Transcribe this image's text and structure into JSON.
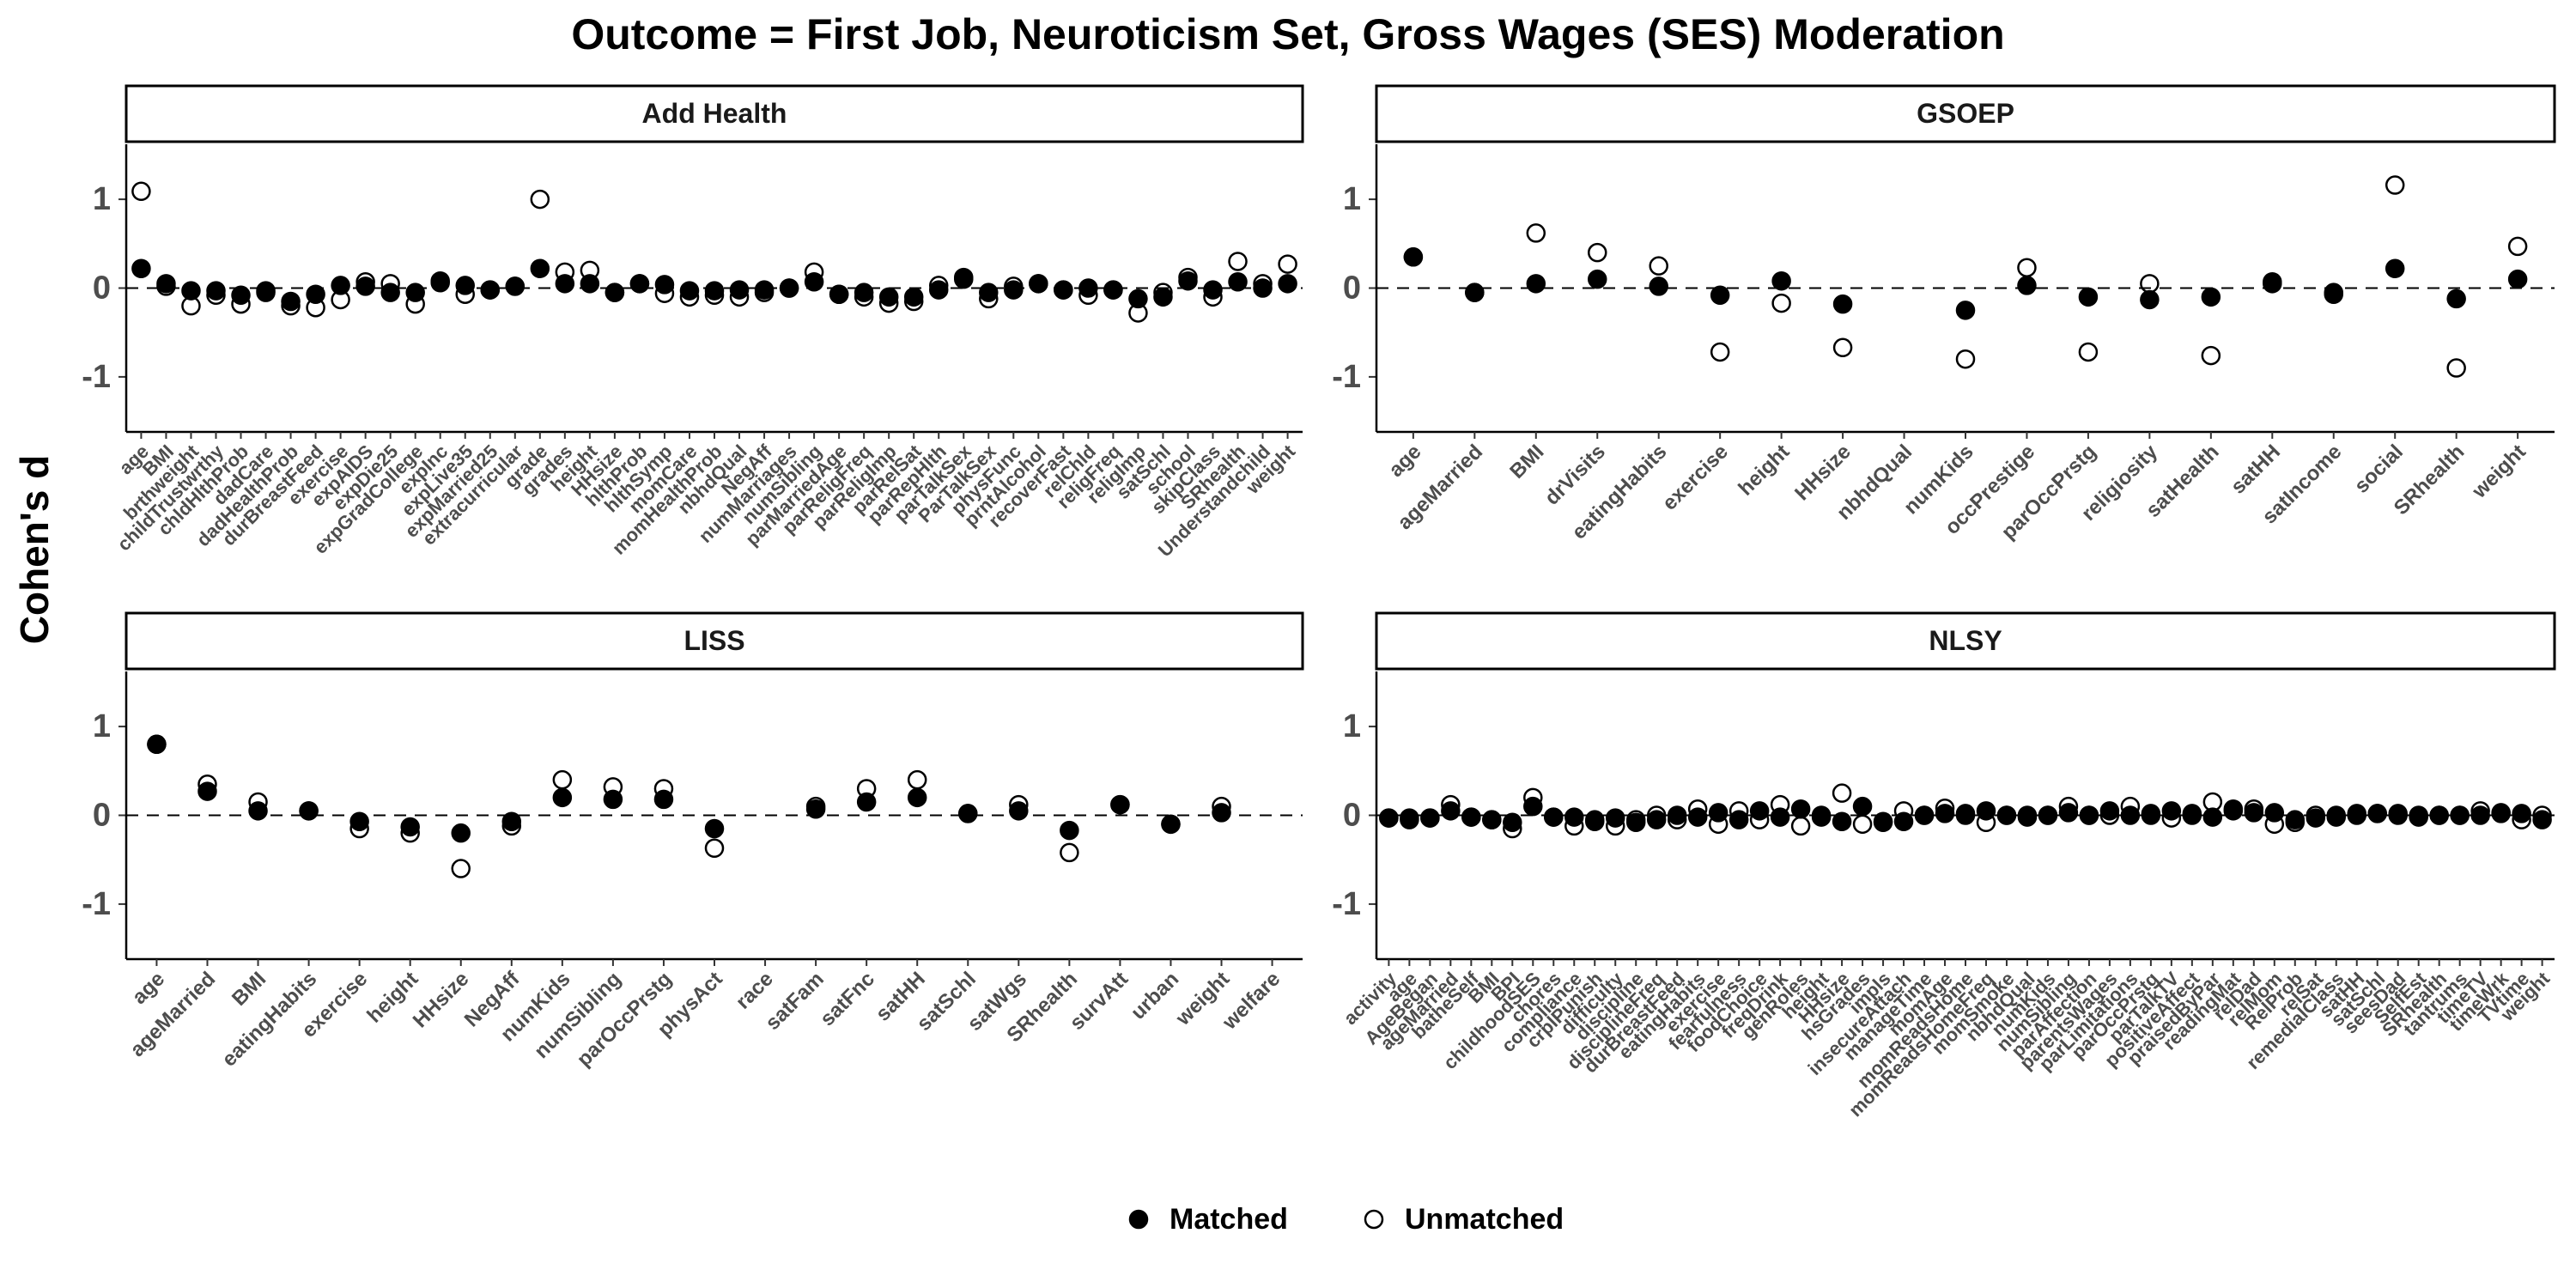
{
  "title": "Outcome = First Job, Neuroticism Set, Gross Wages (SES) Moderation",
  "y_label": "Cohen's d",
  "chart_data": [
    {
      "type": "point",
      "title": "Add Health",
      "categories": [
        "age",
        "BMI",
        "brthweight",
        "childTrustwrthy",
        "chldHlthProb",
        "dadCare",
        "dadHealthProb",
        "durBreastFeed",
        "exercise",
        "expAIDS",
        "expDie25",
        "expGradCollege",
        "expInc",
        "expLive35",
        "expMarried25",
        "extracurricular",
        "grade",
        "grades",
        "height",
        "HHsize",
        "hlthProb",
        "hlthSymp",
        "momCare",
        "momHealthProb",
        "nbhdQual",
        "NegAff",
        "numMarriages",
        "numSibling",
        "parMarriedAge",
        "parReligFreq",
        "parReligImp",
        "parRelSat",
        "parRepHlth",
        "parTalkSex",
        "ParTalkSex",
        "physFunc",
        "prntAlcohol",
        "recoverFast",
        "relChld",
        "religFreq",
        "religImp",
        "satSchl",
        "school",
        "skipClass",
        "SRhealth",
        "Understandchild",
        "weight"
      ],
      "series": [
        {
          "name": "Matched",
          "color": "#000000",
          "marker": "filled",
          "values": [
            0.22,
            0.05,
            -0.03,
            -0.03,
            -0.08,
            -0.05,
            -0.15,
            -0.07,
            0.03,
            0.02,
            -0.05,
            -0.05,
            0.08,
            0.03,
            -0.02,
            0.02,
            0.22,
            0.05,
            0.05,
            -0.05,
            0.05,
            0.04,
            -0.03,
            -0.03,
            -0.02,
            -0.02,
            0.0,
            0.07,
            -0.07,
            -0.05,
            -0.1,
            -0.1,
            -0.02,
            0.12,
            -0.05,
            -0.02,
            0.05,
            -0.02,
            0.0,
            -0.02,
            -0.12,
            -0.1,
            0.08,
            -0.02,
            0.07,
            0.0,
            0.05
          ]
        },
        {
          "name": "Unmatched",
          "color": "#000000",
          "marker": "open",
          "values": [
            1.09,
            0.02,
            -0.2,
            -0.08,
            -0.18,
            -0.03,
            -0.2,
            -0.22,
            -0.13,
            0.07,
            0.05,
            -0.18,
            0.06,
            -0.07,
            -0.02,
            0.02,
            1.0,
            0.18,
            0.2,
            -0.05,
            0.05,
            -0.06,
            -0.1,
            -0.08,
            -0.1,
            -0.05,
            0.0,
            0.18,
            -0.07,
            -0.1,
            -0.17,
            -0.15,
            0.03,
            0.1,
            -0.12,
            0.02,
            0.05,
            -0.02,
            -0.08,
            -0.02,
            -0.28,
            -0.05,
            0.12,
            -0.1,
            0.3,
            0.05,
            0.27
          ]
        }
      ],
      "ylim": [
        -1.62,
        1.62
      ],
      "yticks": [
        -1,
        0,
        1
      ],
      "zero_line": true
    },
    {
      "type": "point",
      "title": "GSOEP",
      "categories": [
        "age",
        "ageMarried",
        "BMI",
        "drVisits",
        "eatingHabits",
        "exercise",
        "height",
        "HHsize",
        "nbhdQual",
        "numKids",
        "occPrestige",
        "parOccPrstg",
        "religiosity",
        "satHealth",
        "satHH",
        "satIncome",
        "social",
        "SRhealth",
        "weight"
      ],
      "series": [
        {
          "name": "Matched",
          "color": "#000000",
          "marker": "filled",
          "values": [
            0.35,
            -0.05,
            0.05,
            0.1,
            0.02,
            -0.08,
            0.08,
            -0.18,
            null,
            -0.25,
            0.03,
            -0.1,
            -0.13,
            -0.1,
            0.07,
            -0.07,
            0.22,
            -0.12,
            0.1
          ]
        },
        {
          "name": "Unmatched",
          "color": "#000000",
          "marker": "open",
          "values": [
            0.35,
            -0.05,
            0.62,
            0.4,
            0.25,
            -0.72,
            -0.17,
            -0.67,
            null,
            -0.8,
            0.23,
            -0.72,
            0.05,
            -0.76,
            0.05,
            -0.05,
            1.16,
            -0.9,
            0.47
          ]
        }
      ],
      "ylim": [
        -1.62,
        1.62
      ],
      "yticks": [
        -1,
        0,
        1
      ],
      "zero_line": true
    },
    {
      "type": "point",
      "title": "LISS",
      "categories": [
        "age",
        "ageMarried",
        "BMI",
        "eatingHabits",
        "exercise",
        "height",
        "HHsize",
        "NegAff",
        "numKids",
        "numSibling",
        "parOccPrstg",
        "physAct",
        "race",
        "satFam",
        "satFnc",
        "satHH",
        "satSchl",
        "satWgs",
        "SRhealth",
        "survAtt",
        "urban",
        "weight",
        "welfare"
      ],
      "series": [
        {
          "name": "Matched",
          "color": "#000000",
          "marker": "filled",
          "values": [
            0.8,
            0.27,
            0.05,
            0.05,
            -0.07,
            -0.13,
            -0.2,
            -0.07,
            0.2,
            0.18,
            0.18,
            -0.15,
            null,
            0.07,
            0.15,
            0.2,
            0.02,
            0.05,
            -0.17,
            0.12,
            -0.1,
            0.03,
            null
          ]
        },
        {
          "name": "Unmatched",
          "color": "#000000",
          "marker": "open",
          "values": [
            0.8,
            0.35,
            0.15,
            0.05,
            -0.15,
            -0.2,
            -0.6,
            -0.12,
            0.4,
            0.32,
            0.3,
            -0.37,
            null,
            0.1,
            0.3,
            0.4,
            0.02,
            0.12,
            -0.42,
            0.12,
            -0.1,
            0.1,
            null
          ]
        }
      ],
      "ylim": [
        -1.62,
        1.62
      ],
      "yticks": [
        -1,
        0,
        1
      ],
      "zero_line": true
    },
    {
      "type": "point",
      "title": "NLSY",
      "categories": [
        "activity",
        "age",
        "AgeBegan",
        "ageMarried",
        "batheSelf",
        "BMI",
        "BPI",
        "childhoodSES",
        "chores",
        "compliance",
        "crplPunish",
        "difficulty",
        "discipline",
        "disciplineFreq",
        "durBreastFeed",
        "eatingHabits",
        "exercise",
        "fearfulness",
        "foodChoice",
        "freqDrink",
        "genRoles",
        "height",
        "HHsize",
        "hsGrades",
        "impls",
        "insecureAttach",
        "manageTime",
        "momAge",
        "momReadsHome",
        "momReadsHomeFreq",
        "momSmoke",
        "nbhdQual",
        "numKids",
        "numSibling",
        "parAffection",
        "parentsWages",
        "parLimitations",
        "parOccPrstg",
        "parTalkTV",
        "positiveAffect",
        "praisedByPar",
        "readingMat",
        "relDad",
        "relMom",
        "RelProb",
        "relSat",
        "remedialClass",
        "satHH",
        "satSchl",
        "seesDad",
        "SelfEst",
        "SRhealth",
        "tantrums",
        "timeTV",
        "timeWrk",
        "TVtime",
        "weight"
      ],
      "series": [
        {
          "name": "Matched",
          "color": "#000000",
          "marker": "filled",
          "values": [
            -0.03,
            -0.05,
            -0.03,
            0.05,
            -0.02,
            -0.05,
            -0.08,
            0.1,
            -0.02,
            -0.02,
            -0.07,
            -0.03,
            -0.08,
            -0.05,
            0.0,
            -0.02,
            0.03,
            -0.05,
            0.05,
            -0.02,
            0.07,
            -0.02,
            -0.07,
            0.1,
            -0.07,
            -0.07,
            0.0,
            0.02,
            0.02,
            0.05,
            0.0,
            -0.02,
            0.0,
            0.03,
            0.0,
            0.05,
            0.0,
            0.02,
            0.05,
            0.02,
            -0.02,
            0.07,
            0.03,
            0.03,
            -0.05,
            -0.03,
            -0.02,
            0.02,
            0.02,
            0.02,
            -0.02,
            0.0,
            0.0,
            0.0,
            0.03,
            0.02,
            -0.05
          ]
        },
        {
          "name": "Unmatched",
          "color": "#000000",
          "marker": "open",
          "values": [
            -0.03,
            -0.03,
            -0.03,
            0.12,
            -0.02,
            -0.05,
            -0.15,
            0.2,
            -0.02,
            -0.12,
            -0.05,
            -0.12,
            -0.05,
            0.0,
            -0.05,
            0.07,
            -0.1,
            0.05,
            -0.05,
            0.12,
            -0.12,
            0.0,
            0.25,
            -0.1,
            -0.08,
            0.05,
            0.0,
            0.08,
            0.0,
            -0.08,
            0.0,
            0.0,
            0.0,
            0.1,
            0.0,
            0.0,
            0.1,
            0.0,
            -0.03,
            0.0,
            0.15,
            0.05,
            0.07,
            -0.1,
            -0.08,
            0.0,
            0.0,
            0.0,
            0.02,
            0.0,
            0.0,
            0.0,
            0.0,
            0.05,
            0.02,
            -0.05,
            0.0
          ]
        }
      ],
      "ylim": [
        -1.62,
        1.62
      ],
      "yticks": [
        -1,
        0,
        1
      ],
      "zero_line": true
    }
  ]
}
